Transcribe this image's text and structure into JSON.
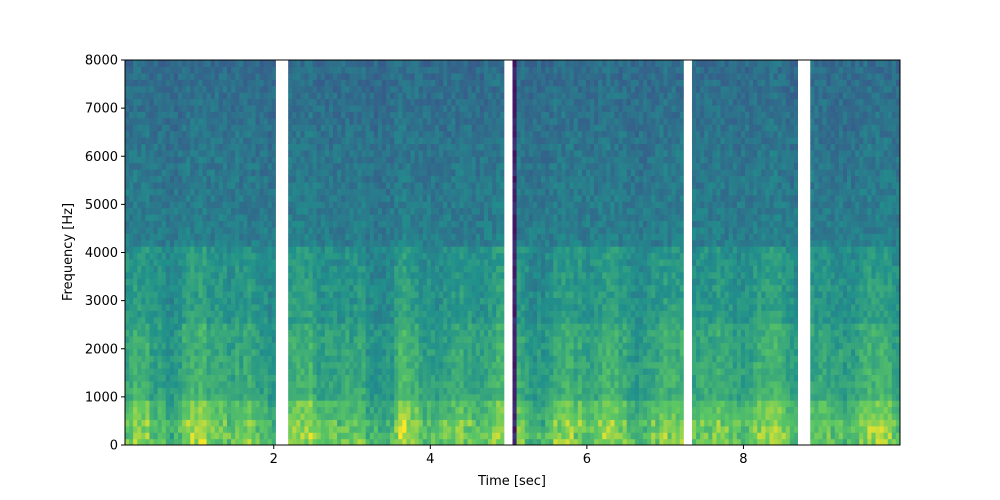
{
  "chart_data": {
    "type": "heatmap",
    "title": "",
    "xlabel": "Time [sec]",
    "ylabel": "Frequency [Hz]",
    "xlim": [
      0.1,
      10.0
    ],
    "ylim": [
      0,
      8000
    ],
    "xticks": [
      2,
      4,
      6,
      8
    ],
    "xtick_labels": [
      "2",
      "4",
      "6",
      "8"
    ],
    "yticks": [
      0,
      1000,
      2000,
      3000,
      4000,
      5000,
      6000,
      7000,
      8000
    ],
    "ytick_labels": [
      "0",
      "1000",
      "2000",
      "3000",
      "4000",
      "5000",
      "6000",
      "7000",
      "8000"
    ],
    "colormap": "viridis",
    "grid": false,
    "silent_gaps_sec": [
      [
        2.03,
        2.17
      ],
      [
        4.95,
        5.05
      ],
      [
        7.23,
        7.32
      ],
      [
        8.72,
        8.86
      ]
    ],
    "dark_band_sec": [
      5.05,
      5.1
    ],
    "colors": {
      "viridis": [
        "#440154",
        "#3b528b",
        "#21918c",
        "#5ec962",
        "#fde725"
      ]
    }
  }
}
